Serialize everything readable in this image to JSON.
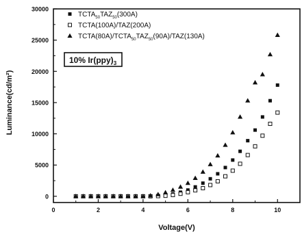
{
  "chart_data": {
    "type": "scatter",
    "title": "",
    "xlabel": "Voltage(V)",
    "ylabel": "Luminance(cd/m²)",
    "xlim": [
      0,
      11
    ],
    "ylim": [
      -1000,
      30000
    ],
    "xticks": [
      0,
      2,
      4,
      6,
      8,
      10
    ],
    "yticks": [
      0,
      5000,
      10000,
      15000,
      20000,
      25000,
      30000
    ],
    "xtick_labels": [
      "0",
      "2",
      "4",
      "6",
      "8",
      "10"
    ],
    "ytick_labels": [
      "0",
      "5000",
      "10000",
      "15000",
      "20000",
      "25000",
      "30000"
    ],
    "grid": false,
    "legend_position": "top-left",
    "annotation": {
      "main": "10% Ir(ppy)",
      "sub": "3"
    },
    "series": [
      {
        "name": "TCTA50TAZ50(300A)",
        "legend": [
          {
            "t": "TCTA",
            "s": false
          },
          {
            "t": "50",
            "s": true
          },
          {
            "t": "TAZ",
            "s": false
          },
          {
            "t": "50",
            "s": true
          },
          {
            "t": "(300A)",
            "s": false
          }
        ],
        "marker": "square-filled",
        "x": [
          1.0,
          1.33,
          1.67,
          2.0,
          2.33,
          2.67,
          3.0,
          3.33,
          3.67,
          4.0,
          4.33,
          4.67,
          5.0,
          5.33,
          5.67,
          6.0,
          6.33,
          6.67,
          7.0,
          7.33,
          7.67,
          8.0,
          8.33,
          8.67,
          9.0,
          9.33,
          9.67,
          10.0
        ],
        "y": [
          0,
          0,
          0,
          0,
          0,
          0,
          0,
          0,
          0,
          0,
          0,
          50,
          150,
          350,
          650,
          1000,
          1500,
          2100,
          2800,
          3600,
          4600,
          5800,
          7200,
          8900,
          10600,
          12700,
          15300,
          17800
        ]
      },
      {
        "name": "TCTA(100A)/TAZ(200A)",
        "legend": [
          {
            "t": "TCTA(100A)/TAZ(200A)",
            "s": false
          }
        ],
        "marker": "square-open",
        "x": [
          1.0,
          1.33,
          1.67,
          2.0,
          2.33,
          2.67,
          3.0,
          3.33,
          3.67,
          4.0,
          4.33,
          4.67,
          5.0,
          5.33,
          5.67,
          6.0,
          6.33,
          6.67,
          7.0,
          7.33,
          7.67,
          8.0,
          8.33,
          8.67,
          9.0,
          9.33,
          9.67,
          10.0
        ],
        "y": [
          0,
          0,
          0,
          0,
          0,
          0,
          0,
          0,
          0,
          0,
          0,
          30,
          80,
          200,
          400,
          650,
          950,
          1300,
          1800,
          2400,
          3200,
          4100,
          5200,
          6600,
          8000,
          9700,
          11600,
          13400
        ]
      },
      {
        "name": "TCTA(80A)/TCTA50TAZ50(90A)/TAZ(130A)",
        "legend": [
          {
            "t": "TCTA(80A)/TCTA",
            "s": false
          },
          {
            "t": "50",
            "s": true
          },
          {
            "t": "TAZ",
            "s": false
          },
          {
            "t": "50",
            "s": true
          },
          {
            "t": "(90A)/TAZ(130A)",
            "s": false
          }
        ],
        "marker": "triangle-filled",
        "x": [
          1.0,
          1.33,
          1.67,
          2.0,
          2.33,
          2.67,
          3.0,
          3.33,
          3.67,
          4.0,
          4.33,
          4.67,
          5.0,
          5.33,
          5.67,
          6.0,
          6.33,
          6.67,
          7.0,
          7.33,
          7.67,
          8.0,
          8.33,
          8.67,
          9.0,
          9.33,
          9.67,
          10.0
        ],
        "y": [
          0,
          0,
          0,
          0,
          0,
          0,
          0,
          0,
          0,
          0,
          100,
          300,
          600,
          1000,
          1500,
          2100,
          2900,
          3900,
          5100,
          6500,
          8200,
          10200,
          12700,
          15300,
          18200,
          19500,
          22700,
          25800
        ]
      }
    ]
  }
}
